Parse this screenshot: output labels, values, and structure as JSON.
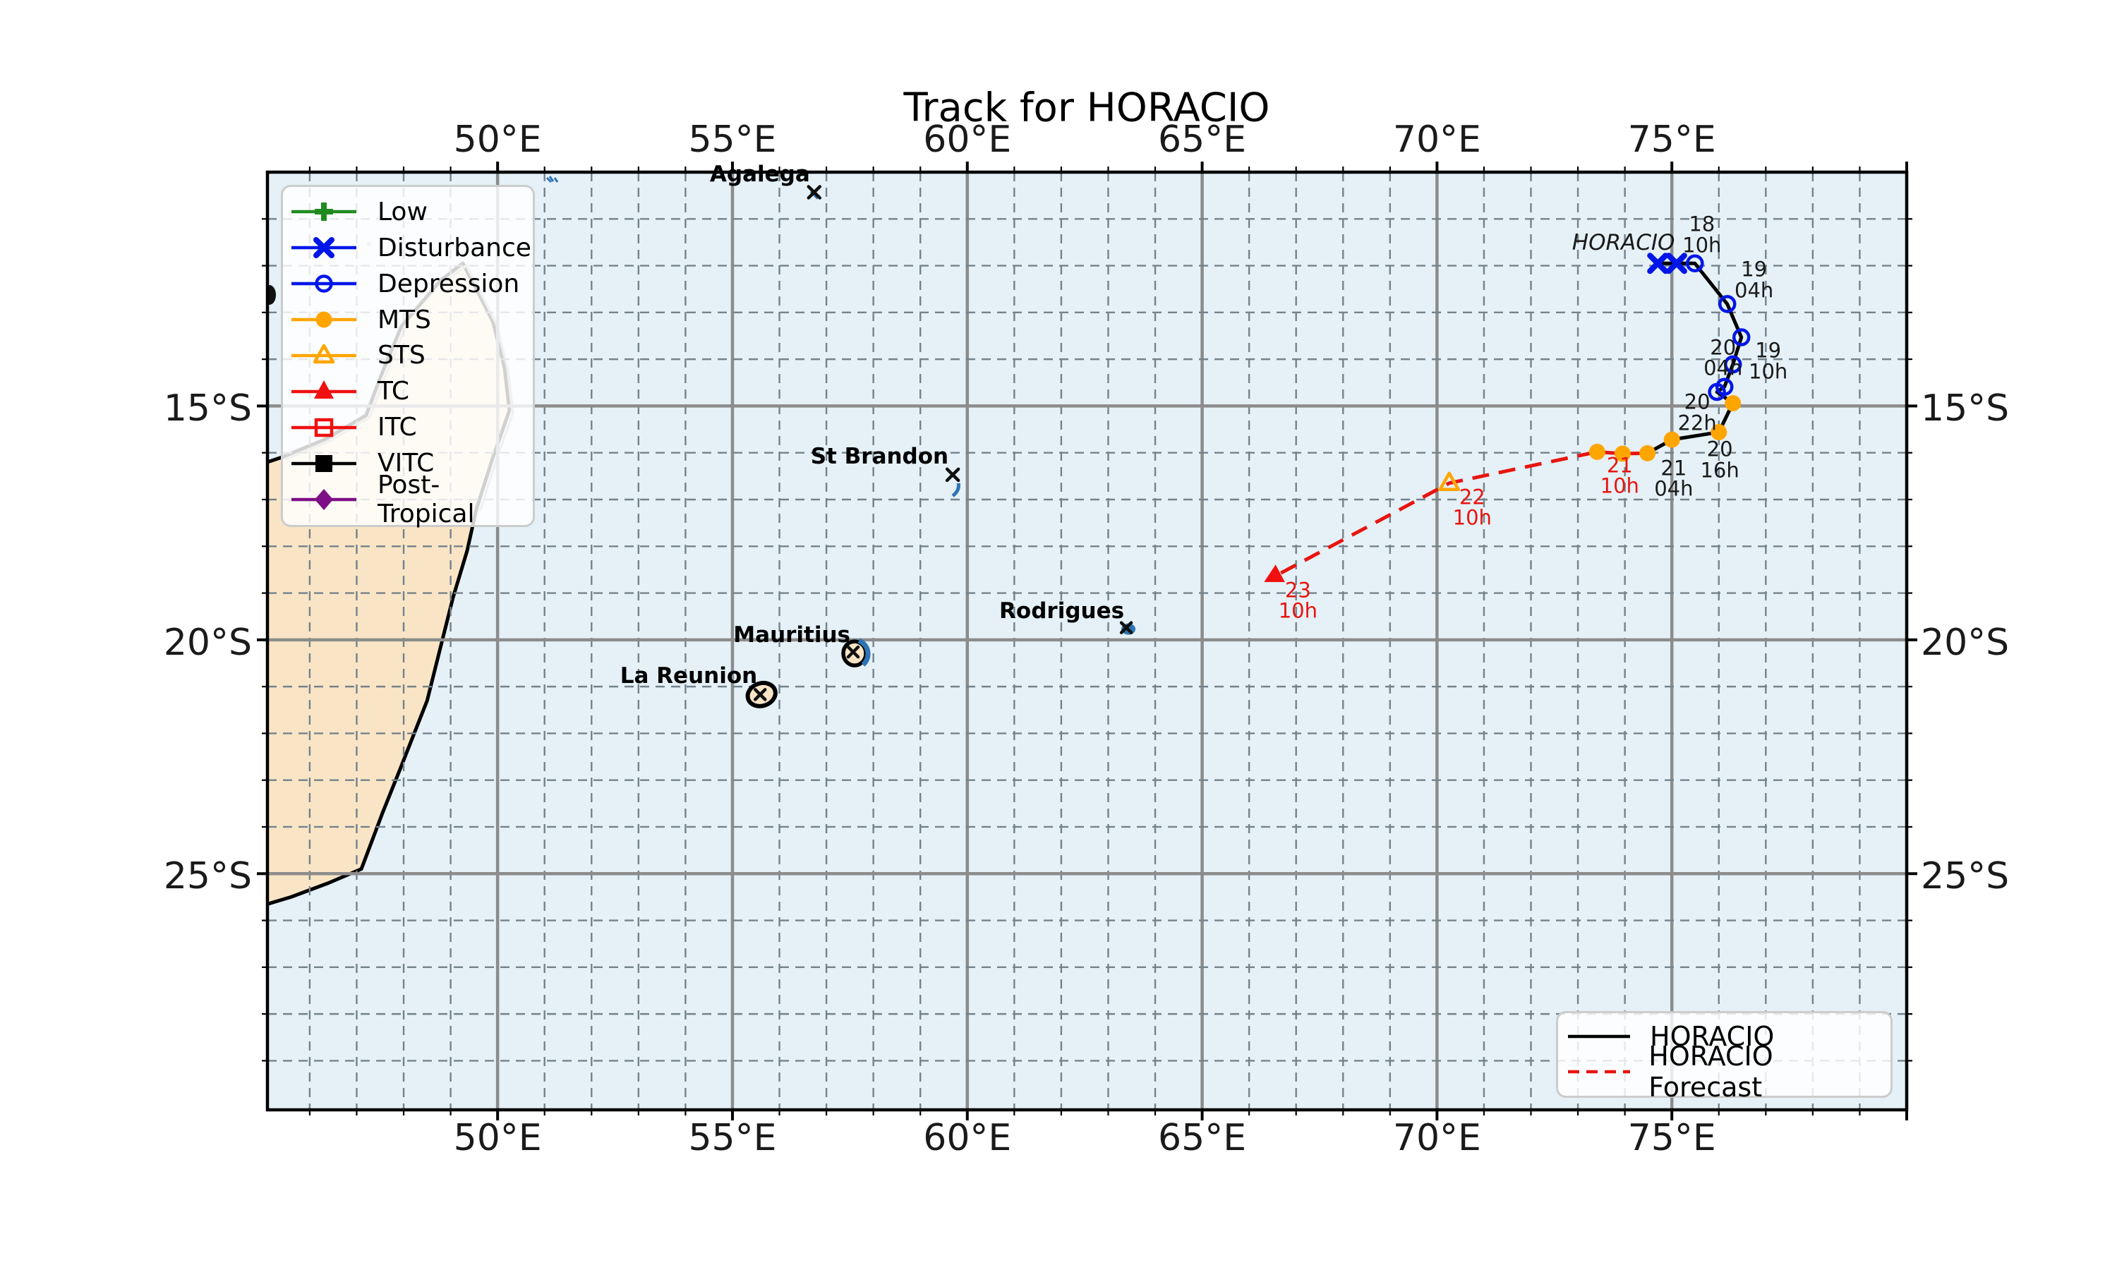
{
  "title": "Track for HORACIO",
  "storm_name_label": {
    "text": "HORACIO",
    "lon": 73.97,
    "lat": 11.51
  },
  "map": {
    "lon_ticks": [
      {
        "value": 50,
        "label": "50°E"
      },
      {
        "value": 55,
        "label": "55°E"
      },
      {
        "value": 60,
        "label": "60°E"
      },
      {
        "value": 65,
        "label": "65°E"
      },
      {
        "value": 70,
        "label": "70°E"
      },
      {
        "value": 75,
        "label": "75°E"
      }
    ],
    "lat_ticks": [
      {
        "value": 15,
        "label": "15°S"
      },
      {
        "value": 20,
        "label": "20°S"
      },
      {
        "value": 25,
        "label": "25°S"
      }
    ],
    "islands": [
      {
        "name": "Agalega",
        "lon": 56.74,
        "lat": 10.43
      },
      {
        "name": "St Brandon",
        "lon": 59.69,
        "lat": 16.47
      },
      {
        "name": "Mauritius",
        "lon": 57.6,
        "lat": 20.29
      },
      {
        "name": "La Reunion",
        "lon": 55.62,
        "lat": 21.17
      },
      {
        "name": "Rodrigues",
        "lon": 63.43,
        "lat": 19.77
      }
    ]
  },
  "legend_categories": [
    {
      "label": "Low",
      "marker": "plus",
      "color": "#1f8b1f"
    },
    {
      "label": "Disturbance",
      "marker": "x",
      "color": "#0016e8"
    },
    {
      "label": "Depression",
      "marker": "circle-open",
      "color": "#0016e8"
    },
    {
      "label": "MTS",
      "marker": "circle",
      "color": "#ffa500"
    },
    {
      "label": "STS",
      "marker": "triangle-open",
      "color": "#ffa500"
    },
    {
      "label": "TC",
      "marker": "triangle",
      "color": "#f01010"
    },
    {
      "label": "ITC",
      "marker": "square-open",
      "color": "#f01010"
    },
    {
      "label": "VITC",
      "marker": "square",
      "color": "#000000"
    },
    {
      "label": "Post-Tropical",
      "marker": "diamond",
      "color": "#7d0f86"
    }
  ],
  "legend_track": [
    {
      "label": "HORACIO",
      "line": "solid",
      "color": "#000000"
    },
    {
      "label": "HORACIO Forecast",
      "line": "dashed",
      "color": "#e8150f"
    }
  ],
  "chart_data": {
    "type": "line",
    "title": "Track for HORACIO",
    "geo_axes": {
      "lon_range_e": [
        45.1,
        80.0
      ],
      "lat_range_s": [
        10.0,
        30.05
      ],
      "grid_major_deg": 5,
      "grid_minor_deg": 1
    },
    "series": [
      {
        "name": "HORACIO",
        "style": "solid-black",
        "points": [
          {
            "lon": 74.7,
            "lat": 11.95,
            "status": "Disturbance"
          },
          {
            "lon": 75.1,
            "lat": 11.95,
            "status": "Disturbance"
          },
          {
            "lon": 75.49,
            "lat": 11.95,
            "status": "Depression",
            "time": "18 10h"
          },
          {
            "lon": 76.18,
            "lat": 12.82,
            "status": "Depression",
            "time": "19 04h"
          },
          {
            "lon": 76.48,
            "lat": 13.53,
            "status": "Depression",
            "time": "19 10h"
          },
          {
            "lon": 76.3,
            "lat": 14.11,
            "status": "Depression"
          },
          {
            "lon": 76.12,
            "lat": 14.59,
            "status": "Depression"
          },
          {
            "lon": 75.96,
            "lat": 14.7,
            "status": "Depression",
            "time": "20 04h"
          },
          {
            "lon": 76.3,
            "lat": 14.94,
            "status": "MTS"
          },
          {
            "lon": 76.0,
            "lat": 15.56,
            "status": "MTS",
            "time": "20 16h"
          },
          {
            "lon": 75.0,
            "lat": 15.72,
            "status": "MTS",
            "time": "20 22h"
          },
          {
            "lon": 74.48,
            "lat": 16.01,
            "status": "MTS",
            "time": "21 04h"
          }
        ]
      },
      {
        "name": "HORACIO Forecast",
        "style": "dashed-red",
        "points": [
          {
            "lon": 74.48,
            "lat": 16.01,
            "status": "MTS"
          },
          {
            "lon": 73.95,
            "lat": 16.02,
            "status": "MTS",
            "time": "21 10h"
          },
          {
            "lon": 73.41,
            "lat": 15.98,
            "status": "MTS"
          },
          {
            "lon": 70.26,
            "lat": 16.65,
            "status": "STS",
            "time": "22 10h"
          },
          {
            "lon": 66.53,
            "lat": 18.65,
            "status": "TC",
            "time": "23 10h"
          }
        ]
      }
    ],
    "time_labels": [
      {
        "lines": [
          "18",
          "10h"
        ],
        "lon": 75.64,
        "lat": 11.35,
        "color": "#1a1a1a"
      },
      {
        "lines": [
          "19",
          "04h"
        ],
        "lon": 76.75,
        "lat": 12.31,
        "color": "#1a1a1a"
      },
      {
        "lines": [
          "19",
          "10h"
        ],
        "lon": 77.05,
        "lat": 14.05,
        "color": "#1a1a1a"
      },
      {
        "lines": [
          "20",
          "04h"
        ],
        "lon": 76.09,
        "lat": 13.98,
        "color": "#1a1a1a"
      },
      {
        "lines": [
          "20",
          "22h"
        ],
        "lon": 75.54,
        "lat": 15.15,
        "color": "#1a1a1a"
      },
      {
        "lines": [
          "20",
          "16h"
        ],
        "lon": 76.02,
        "lat": 16.16,
        "color": "#1a1a1a"
      },
      {
        "lines": [
          "21",
          "04h"
        ],
        "lon": 75.04,
        "lat": 16.56,
        "color": "#1a1a1a"
      },
      {
        "lines": [
          "21",
          "10h"
        ],
        "lon": 73.89,
        "lat": 16.5,
        "color": "#e8150f"
      },
      {
        "lines": [
          "22",
          "10h"
        ],
        "lon": 70.75,
        "lat": 17.18,
        "color": "#e8150f"
      },
      {
        "lines": [
          "23",
          "10h"
        ],
        "lon": 67.04,
        "lat": 19.17,
        "color": "#e8150f"
      }
    ]
  },
  "colors": {
    "ocean": "#e5f1f7",
    "land": "#f9e5c5",
    "coast": "#000000",
    "coast_secondary": "#b3b3b3",
    "grid_major": "#8c8c8c",
    "grid_minor": "#74828c",
    "minor_island": "#2e74b5",
    "analysis_line": "#000000",
    "forecast_line": "#e8150f"
  }
}
